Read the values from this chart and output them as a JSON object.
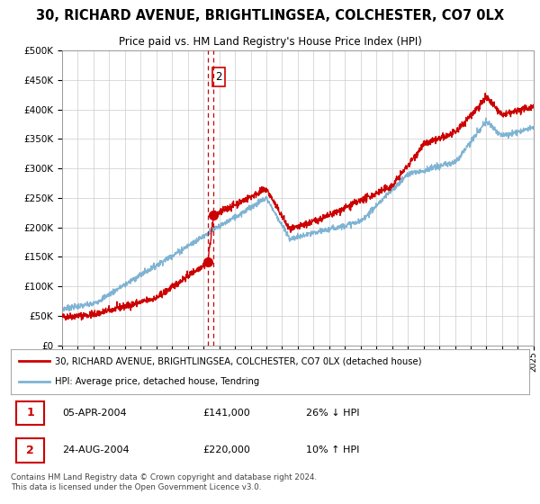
{
  "title": "30, RICHARD AVENUE, BRIGHTLINGSEA, COLCHESTER, CO7 0LX",
  "subtitle": "Price paid vs. HM Land Registry's House Price Index (HPI)",
  "legend_line1": "30, RICHARD AVENUE, BRIGHTLINGSEA, COLCHESTER, CO7 0LX (detached house)",
  "legend_line2": "HPI: Average price, detached house, Tendring",
  "transaction1_date": "05-APR-2004",
  "transaction1_price": 141000,
  "transaction1_hpi": "26% ↓ HPI",
  "transaction2_date": "24-AUG-2004",
  "transaction2_price": 220000,
  "transaction2_hpi": "10% ↑ HPI",
  "footer": "Contains HM Land Registry data © Crown copyright and database right 2024.\nThis data is licensed under the Open Government Licence v3.0.",
  "line_color_red": "#cc0000",
  "line_color_blue": "#7fb3d3",
  "dashed_line_color": "#cc0000",
  "ylim": [
    0,
    500000
  ],
  "yticks": [
    0,
    50000,
    100000,
    150000,
    200000,
    250000,
    300000,
    350000,
    400000,
    450000,
    500000
  ],
  "background_color": "#ffffff",
  "grid_color": "#cccccc",
  "t1_year": 2004.27,
  "t2_year": 2004.64
}
